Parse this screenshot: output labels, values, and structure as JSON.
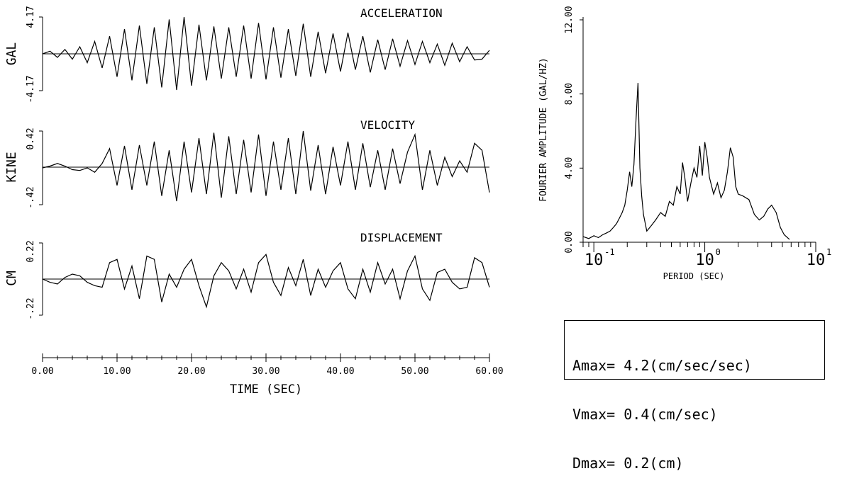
{
  "chart_data": [
    {
      "type": "line",
      "title": "ACCELERATION",
      "ylabel": "GAL",
      "ytick_labels": [
        "4.17",
        "-4.17"
      ],
      "ylim": [
        -4.17,
        4.17
      ],
      "xlim": [
        0,
        60
      ],
      "series": [
        {
          "x": [
            0,
            1,
            2,
            3,
            4,
            5,
            6,
            7,
            8,
            9,
            10,
            11,
            12,
            13,
            14,
            15,
            16,
            17,
            18,
            19,
            20,
            21,
            22,
            23,
            24,
            25,
            26,
            27,
            28,
            29,
            30,
            31,
            32,
            33,
            34,
            35,
            36,
            37,
            38,
            39,
            40,
            41,
            42,
            43,
            44,
            45,
            46,
            47,
            48,
            49,
            50,
            51,
            52,
            53,
            54,
            55,
            56,
            57,
            58,
            59,
            60
          ],
          "y": [
            0,
            0.3,
            -0.4,
            0.5,
            -0.6,
            0.8,
            -1.0,
            1.4,
            -1.6,
            2.0,
            -2.6,
            2.8,
            -3.0,
            3.2,
            -3.4,
            3.0,
            -3.8,
            3.9,
            -4.1,
            4.17,
            -3.6,
            3.3,
            -3.0,
            3.1,
            -2.8,
            3.0,
            -2.6,
            3.2,
            -2.8,
            3.5,
            -2.9,
            3.0,
            -2.7,
            2.8,
            -2.5,
            3.4,
            -2.6,
            2.5,
            -2.2,
            2.3,
            -2.0,
            2.4,
            -1.8,
            2.0,
            -2.1,
            1.6,
            -1.8,
            1.7,
            -1.4,
            1.5,
            -1.2,
            1.4,
            -1.0,
            1.1,
            -1.3,
            1.2,
            -0.9,
            0.8,
            -0.7,
            -0.6,
            0.4
          ]
        }
      ]
    },
    {
      "type": "line",
      "title": "VELOCITY",
      "ylabel": "KINE",
      "ytick_labels": [
        "0.42",
        "-.42"
      ],
      "ylim": [
        -0.42,
        0.42
      ],
      "xlim": [
        0,
        60
      ],
      "series": [
        {
          "x": [
            0,
            1,
            2,
            3,
            4,
            5,
            6,
            7,
            8,
            9,
            10,
            11,
            12,
            13,
            14,
            15,
            16,
            17,
            18,
            19,
            20,
            21,
            22,
            23,
            24,
            25,
            26,
            27,
            28,
            29,
            30,
            31,
            32,
            33,
            34,
            35,
            36,
            37,
            38,
            39,
            40,
            41,
            42,
            43,
            44,
            45,
            46,
            47,
            48,
            49,
            50,
            51,
            52,
            53,
            54,
            55,
            56,
            57,
            58,
            59,
            60
          ],
          "y": [
            0,
            0.02,
            0.05,
            0.02,
            -0.02,
            -0.03,
            0,
            -0.05,
            0.05,
            0.22,
            -0.2,
            0.25,
            -0.25,
            0.26,
            -0.2,
            0.3,
            -0.32,
            0.2,
            -0.38,
            0.3,
            -0.28,
            0.34,
            -0.3,
            0.4,
            -0.34,
            0.36,
            -0.3,
            0.32,
            -0.28,
            0.38,
            -0.32,
            0.3,
            -0.25,
            0.34,
            -0.3,
            0.42,
            -0.26,
            0.26,
            -0.3,
            0.24,
            -0.2,
            0.3,
            -0.25,
            0.28,
            -0.22,
            0.2,
            -0.25,
            0.22,
            -0.18,
            0.18,
            0.38,
            -0.25,
            0.2,
            -0.2,
            0.12,
            -0.1,
            0.08,
            -0.05,
            0.28,
            0.2,
            -0.28
          ]
        }
      ]
    },
    {
      "type": "line",
      "title": "DISPLACEMENT",
      "ylabel": "CM",
      "ytick_labels": [
        "0.22",
        "-.22"
      ],
      "ylim": [
        -0.22,
        0.22
      ],
      "xlim": [
        0,
        60
      ],
      "xlabel": "TIME  (SEC)",
      "xticks": [
        0,
        10,
        20,
        30,
        40,
        50,
        60
      ],
      "xtick_labels": [
        "0.00",
        "10.00",
        "20.00",
        "30.00",
        "40.00",
        "50.00",
        "60.00"
      ],
      "series": [
        {
          "x": [
            0,
            1,
            2,
            3,
            4,
            5,
            6,
            7,
            8,
            9,
            10,
            11,
            12,
            13,
            14,
            15,
            16,
            17,
            18,
            19,
            20,
            21,
            22,
            23,
            24,
            25,
            26,
            27,
            28,
            29,
            30,
            31,
            32,
            33,
            34,
            35,
            36,
            37,
            38,
            39,
            40,
            41,
            42,
            43,
            44,
            45,
            46,
            47,
            48,
            49,
            50,
            51,
            52,
            53,
            54,
            55,
            56,
            57,
            58,
            59,
            60
          ],
          "y": [
            0,
            -0.02,
            -0.03,
            0.01,
            0.03,
            0.02,
            -0.02,
            -0.04,
            -0.05,
            0.1,
            0.12,
            -0.06,
            0.08,
            -0.12,
            0.14,
            0.12,
            -0.14,
            0.03,
            -0.05,
            0.06,
            0.12,
            -0.04,
            -0.17,
            0.02,
            0.1,
            0.05,
            -0.06,
            0.06,
            -0.08,
            0.1,
            0.15,
            -0.02,
            -0.1,
            0.07,
            -0.04,
            0.12,
            -0.1,
            0.06,
            -0.05,
            0.05,
            0.1,
            -0.06,
            -0.12,
            0.06,
            -0.08,
            0.1,
            -0.03,
            0.06,
            -0.12,
            0.05,
            0.14,
            -0.06,
            -0.13,
            0.04,
            0.06,
            -0.02,
            -0.06,
            -0.05,
            0.13,
            0.1,
            -0.05
          ]
        }
      ]
    },
    {
      "type": "line",
      "xlabel": "PERIOD  (SEC)",
      "ylabel": "FOURIER AMPLITUDE (GAL/HZ)",
      "xscale": "log",
      "xlim": [
        0.08,
        10
      ],
      "ylim": [
        0,
        12
      ],
      "yticks": [
        0,
        4,
        8,
        12
      ],
      "ytick_labels": [
        "0.00",
        "4.00",
        "8.00",
        "12.00"
      ],
      "xtick_labels": [
        "10",
        "10",
        "10"
      ],
      "xtick_exponents": [
        "-1",
        "0",
        "1"
      ],
      "series": [
        {
          "x": [
            0.08,
            0.09,
            0.1,
            0.11,
            0.12,
            0.13,
            0.14,
            0.15,
            0.16,
            0.17,
            0.18,
            0.19,
            0.2,
            0.21,
            0.22,
            0.23,
            0.24,
            0.25,
            0.26,
            0.27,
            0.28,
            0.3,
            0.33,
            0.36,
            0.4,
            0.44,
            0.48,
            0.52,
            0.56,
            0.6,
            0.63,
            0.66,
            0.7,
            0.75,
            0.8,
            0.85,
            0.9,
            0.95,
            1.0,
            1.05,
            1.1,
            1.2,
            1.3,
            1.4,
            1.5,
            1.6,
            1.7,
            1.8,
            1.9,
            2.0,
            2.2,
            2.5,
            2.8,
            3.1,
            3.4,
            3.7,
            4.0,
            4.4,
            4.8,
            5.2,
            5.8
          ],
          "y": [
            0.3,
            0.2,
            0.35,
            0.25,
            0.4,
            0.5,
            0.6,
            0.8,
            1.0,
            1.3,
            1.6,
            2.0,
            2.8,
            3.8,
            3.0,
            4.2,
            6.6,
            8.6,
            4.0,
            2.5,
            1.5,
            0.6,
            0.9,
            1.2,
            1.6,
            1.4,
            2.2,
            2.0,
            3.0,
            2.6,
            4.3,
            3.5,
            2.2,
            3.2,
            4.0,
            3.5,
            5.2,
            3.6,
            5.4,
            4.6,
            3.5,
            2.6,
            3.2,
            2.4,
            2.8,
            3.8,
            5.1,
            4.6,
            3.0,
            2.6,
            2.5,
            2.3,
            1.5,
            1.2,
            1.4,
            1.8,
            2.0,
            1.6,
            0.8,
            0.4,
            0.15
          ]
        }
      ]
    }
  ],
  "info_box": {
    "amax": "Amax= 4.2(cm/sec/sec)",
    "vmax": "Vmax= 0.4(cm/sec)",
    "dmax": "Dmax= 0.2(cm)"
  }
}
